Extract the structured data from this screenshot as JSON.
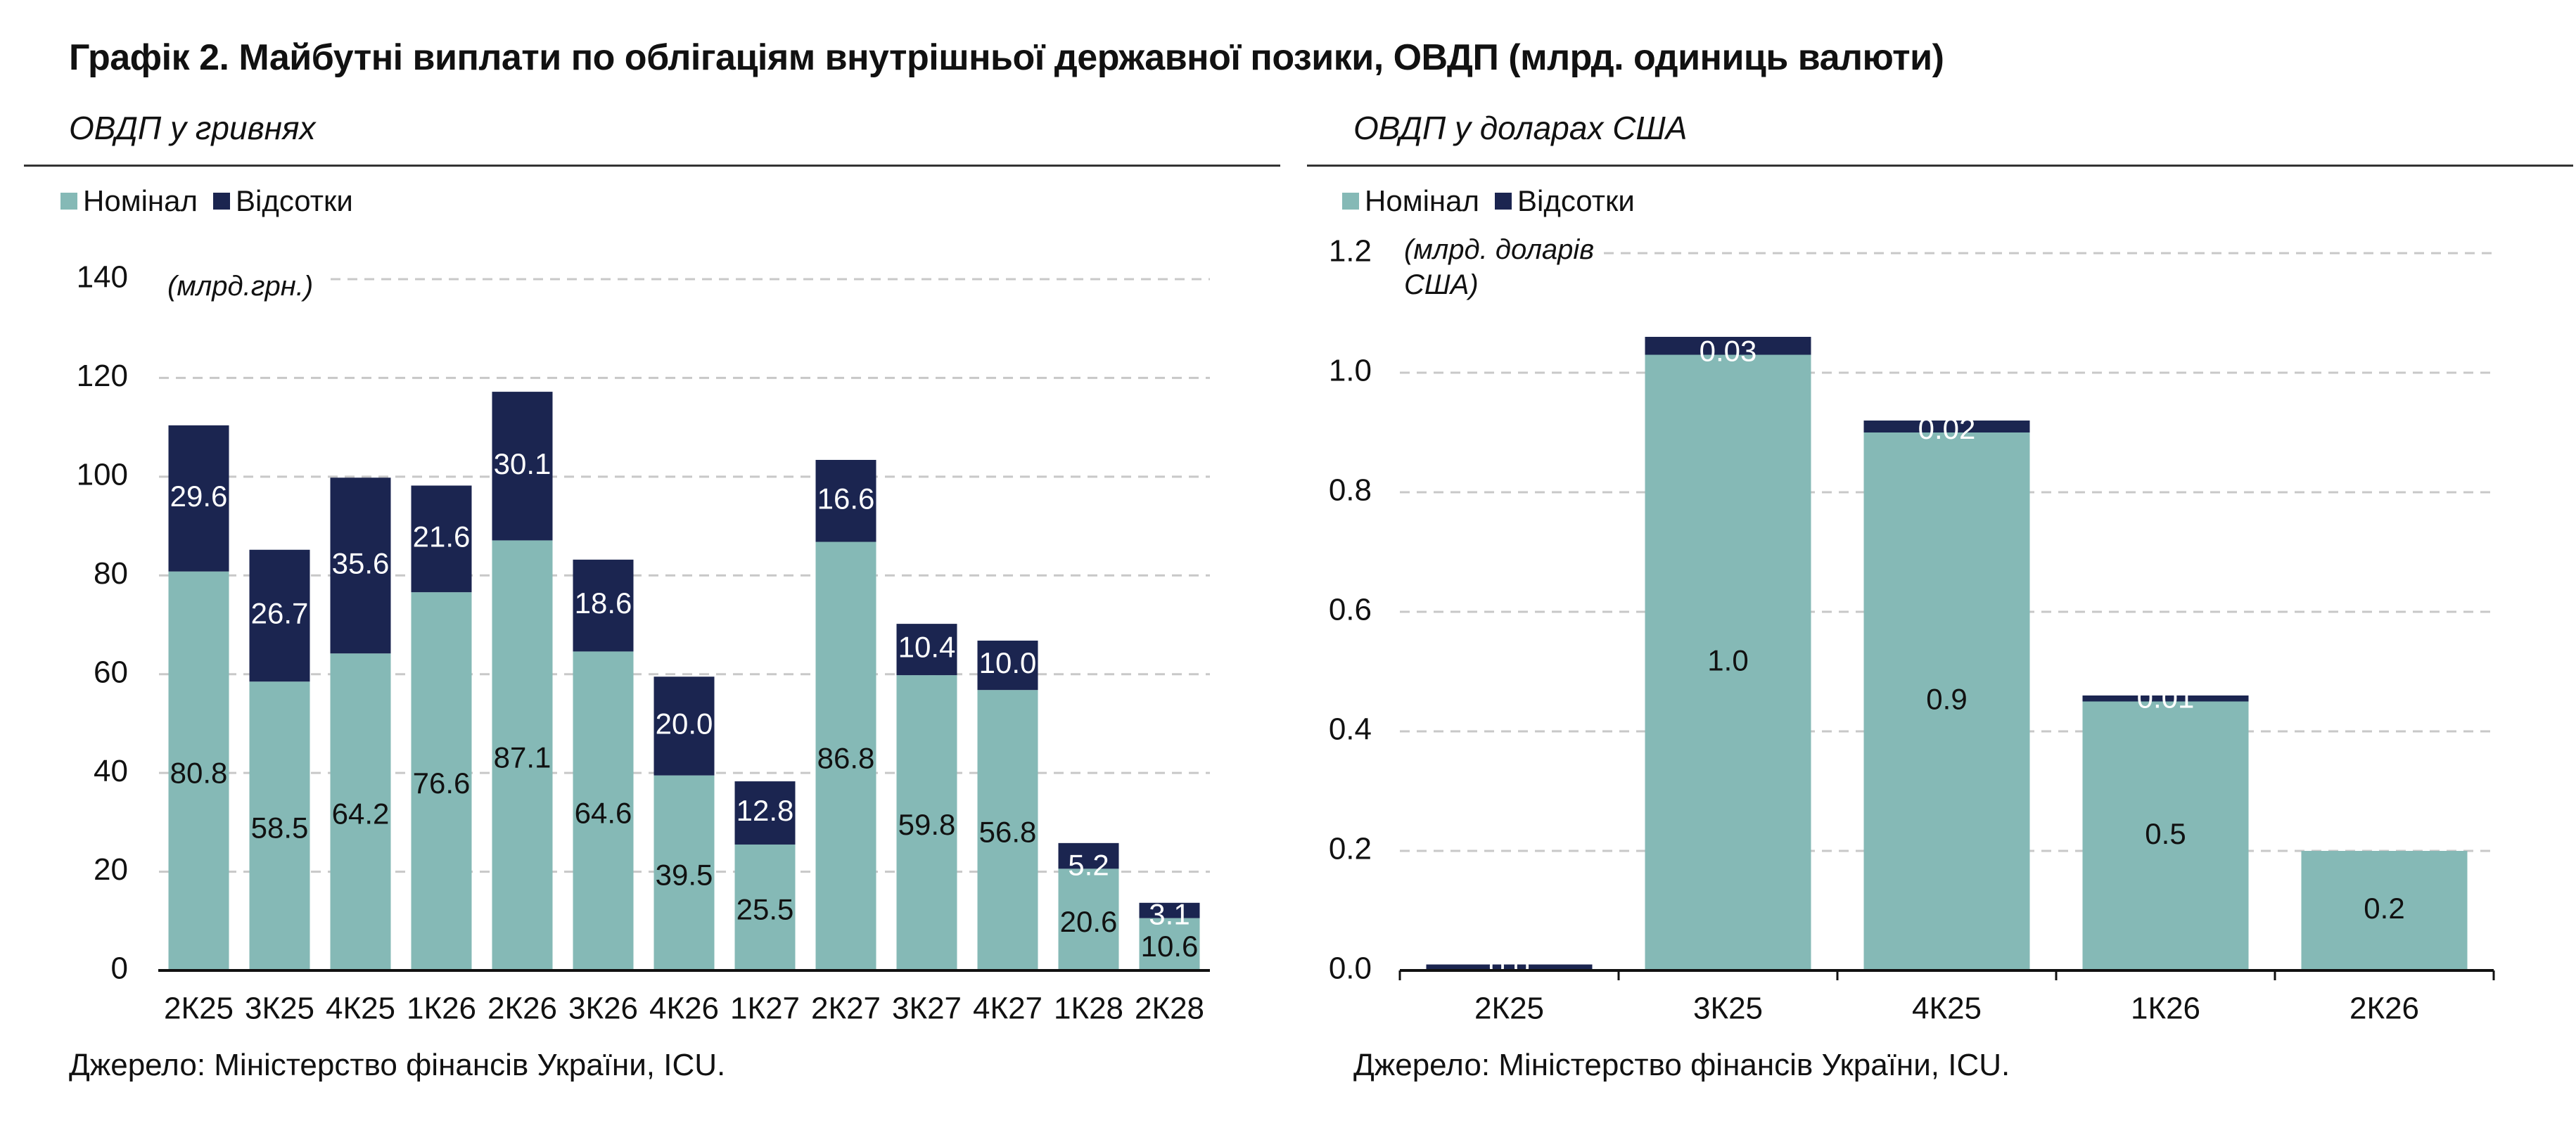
{
  "title": "Графік 2. Майбутні виплати по облігаціям внутрішньої державної позики, ОВДП (млрд. одиниць валюти)",
  "colors": {
    "nominal": "#85b9b6",
    "interest": "#1b2550",
    "grid": "#c8c8c8",
    "axis": "#111111"
  },
  "chart_data": [
    {
      "type": "bar",
      "stacked": true,
      "subtitle": "ОВДП у гривнях",
      "unit_label": "(млрд.грн.)",
      "categories": [
        "2К25",
        "3К25",
        "4К25",
        "1К26",
        "2К26",
        "3К26",
        "4К26",
        "1К27",
        "2К27",
        "3К27",
        "4К27",
        "1К28",
        "2К28"
      ],
      "series": [
        {
          "name": "Номінал",
          "values": [
            80.8,
            58.5,
            64.2,
            76.6,
            87.1,
            64.6,
            39.5,
            25.5,
            86.8,
            59.8,
            56.8,
            20.6,
            10.6
          ],
          "labels": [
            "80.8",
            "58.5",
            "64.2",
            "76.6",
            "87.1",
            "64.6",
            "39.5",
            "25.5",
            "86.8",
            "59.8",
            "56.8",
            "20.6",
            "10.6"
          ]
        },
        {
          "name": "Відсотки",
          "values": [
            29.6,
            26.7,
            35.6,
            21.6,
            30.1,
            18.6,
            20.0,
            12.8,
            16.6,
            10.4,
            10.0,
            5.2,
            3.1
          ],
          "labels": [
            "29.6",
            "26.7",
            "35.6",
            "21.6",
            "30.1",
            "18.6",
            "20.0",
            "12.8",
            "16.6",
            "10.4",
            "10.0",
            "5.2",
            "3.1"
          ]
        }
      ],
      "ylim": [
        0,
        140
      ],
      "yticks": [
        "0",
        "20",
        "40",
        "60",
        "80",
        "100",
        "120",
        "140"
      ],
      "grid": true,
      "legend": "top-left",
      "source": "Джерело: Міністерство фінансів України, ICU."
    },
    {
      "type": "bar",
      "stacked": true,
      "subtitle": "ОВДП у доларах США",
      "unit_label": [
        "(млрд. доларів",
        "США)"
      ],
      "categories": [
        "2К25",
        "3К25",
        "4К25",
        "1К26",
        "2К26"
      ],
      "series": [
        {
          "name": "Номінал",
          "values": [
            0.0,
            1.03,
            0.9,
            0.45,
            0.2
          ],
          "labels": [
            "",
            "1.0",
            "0.9",
            "0.5",
            "0.2"
          ]
        },
        {
          "name": "Відсотки",
          "values": [
            0.01,
            0.03,
            0.02,
            0.01,
            0.0
          ],
          "labels": [
            "0.0",
            "0.03",
            "0.02",
            "0.01",
            ""
          ]
        }
      ],
      "ylim": [
        0,
        1.2
      ],
      "yticks": [
        "0.0",
        "0.2",
        "0.4",
        "0.6",
        "0.8",
        "1.0",
        "1.2"
      ],
      "grid": true,
      "legend": "top-left",
      "source": "Джерело: Міністерство фінансів України, ICU."
    }
  ]
}
